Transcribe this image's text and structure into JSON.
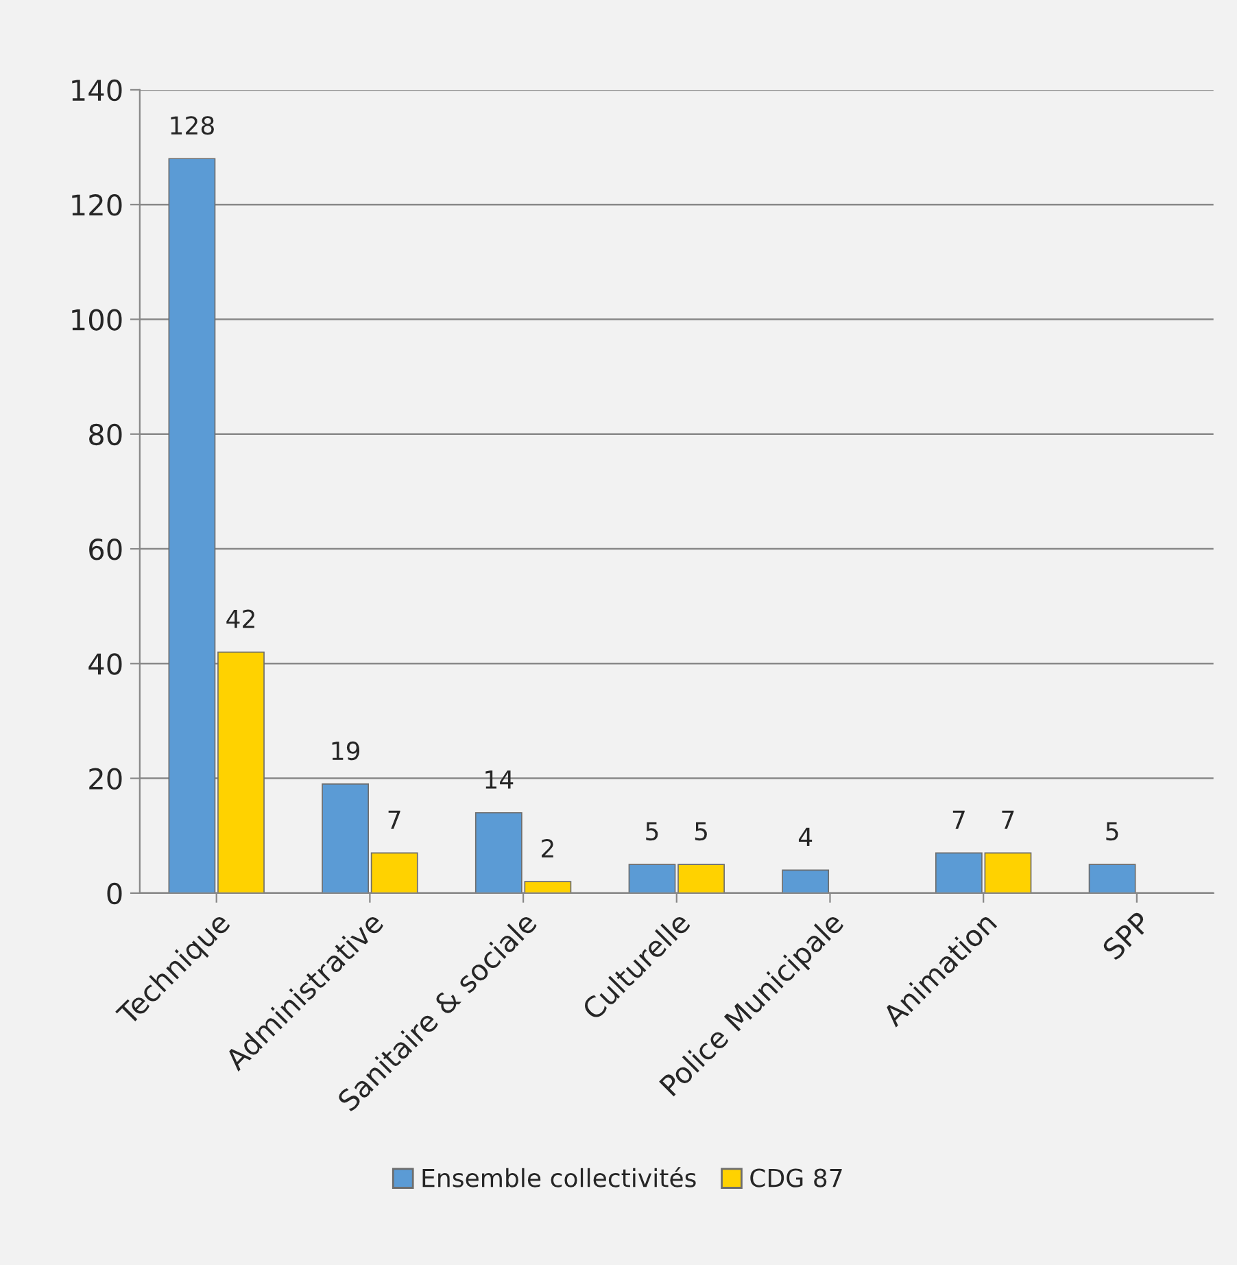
{
  "chart_data": {
    "type": "bar",
    "categories": [
      "Technique",
      "Administrative",
      "Sanitaire & sociale",
      "Culturelle",
      "Police Municipale",
      "Animation",
      "SPP"
    ],
    "series": [
      {
        "name": "Ensemble collectivités",
        "color": "#5b9bd5",
        "values": [
          128,
          19,
          14,
          5,
          4,
          7,
          5
        ]
      },
      {
        "name": "CDG 87",
        "color": "#ffd200",
        "values": [
          42,
          7,
          2,
          5,
          null,
          7,
          null
        ]
      }
    ],
    "ylim": [
      0,
      140
    ],
    "yticks": [
      0,
      20,
      40,
      60,
      80,
      100,
      120,
      140
    ],
    "grid": "y",
    "legend": "bottom",
    "data_labels": true
  }
}
